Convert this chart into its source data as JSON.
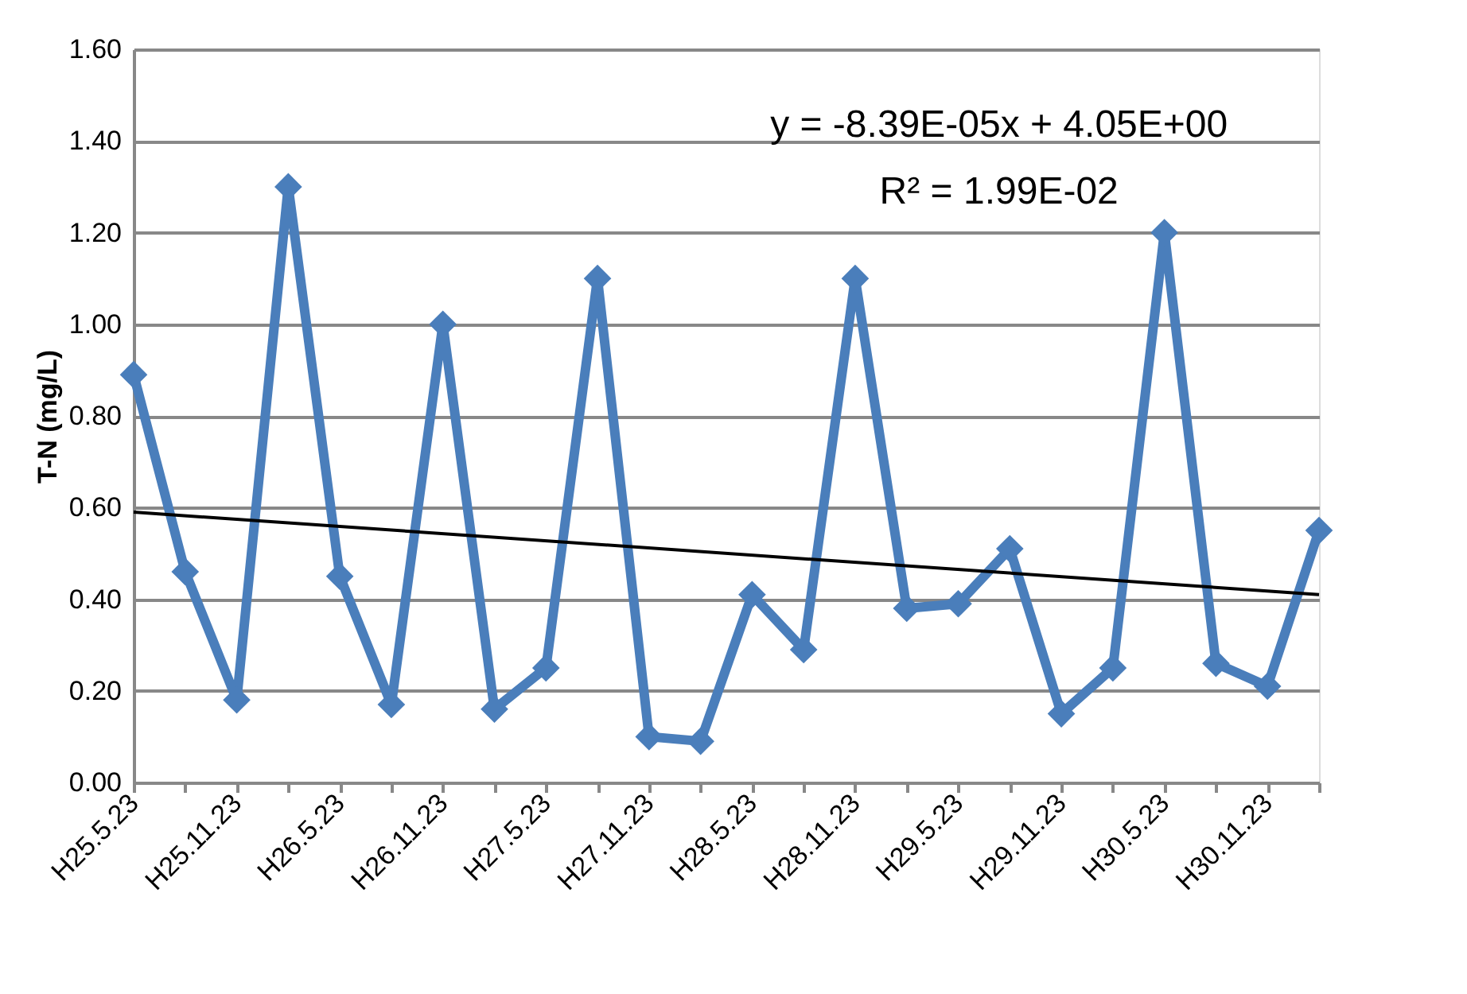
{
  "chart_data": {
    "type": "line",
    "ylabel": "T-N (mg/L)",
    "categories": [
      "H25.5.23",
      null,
      "H25.11.23",
      null,
      "H26.5.23",
      null,
      "H26.11.23",
      null,
      "H27.5.23",
      null,
      "H27.11.23",
      null,
      "H28.5.23",
      null,
      "H28.11.23",
      null,
      "H29.5.23",
      null,
      "H29.11.23",
      null,
      "H30.5.23",
      null,
      "H30.11.23",
      null
    ],
    "series": [
      {
        "color": "#4a7ebb",
        "marker": "diamond",
        "values": [
          0.89,
          0.46,
          0.18,
          1.3,
          0.45,
          0.17,
          1.0,
          0.16,
          0.25,
          1.1,
          0.1,
          0.09,
          0.41,
          0.29,
          1.1,
          0.38,
          0.39,
          0.51,
          0.15,
          0.25,
          1.2,
          0.26,
          0.21,
          0.55
        ]
      },
      {
        "color": "#000000",
        "marker": "none",
        "values": [
          0.59,
          null,
          null,
          null,
          null,
          null,
          null,
          null,
          null,
          null,
          null,
          null,
          null,
          null,
          null,
          null,
          null,
          null,
          null,
          null,
          null,
          null,
          null,
          0.41
        ]
      }
    ],
    "ylim": [
      0,
      1.6
    ],
    "yticks": [
      {
        "value": 0,
        "label": "0.00"
      },
      {
        "value": 0.2,
        "label": "0.20"
      },
      {
        "value": 0.4,
        "label": "0.40"
      },
      {
        "value": 0.6,
        "label": "0.60"
      },
      {
        "value": 0.8,
        "label": "0.80"
      },
      {
        "value": 1.0,
        "label": "1.00"
      },
      {
        "value": 1.2,
        "label": "1.20"
      },
      {
        "value": 1.4,
        "label": "1.40"
      },
      {
        "value": 1.6,
        "label": "1.60"
      }
    ],
    "grid": "y",
    "annotations": [
      "y = -8.39E-05x + 4.05E+00",
      "R² = 1.99E-02"
    ]
  }
}
